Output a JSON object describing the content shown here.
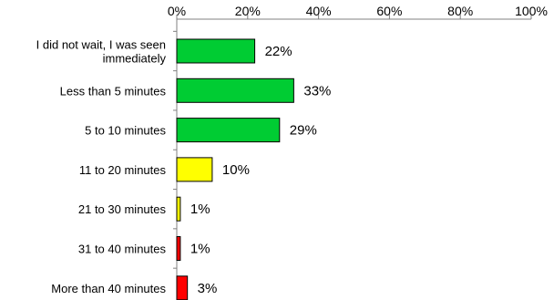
{
  "chart_data": {
    "type": "bar",
    "orientation": "horizontal",
    "title": "",
    "xlabel": "",
    "ylabel": "",
    "xlim": [
      0,
      100
    ],
    "x_ticks": [
      "0%",
      "20%",
      "40%",
      "60%",
      "80%",
      "100%"
    ],
    "x_tick_values": [
      0,
      20,
      40,
      60,
      80,
      100
    ],
    "x_axis_position": "top",
    "grid": false,
    "legend": "none",
    "categories": [
      [
        "I did not wait, I was seen",
        "immediately"
      ],
      [
        "Less than 5 minutes"
      ],
      [
        "5 to 10 minutes"
      ],
      [
        "11 to 20 minutes"
      ],
      [
        "21 to 30 minutes"
      ],
      [
        "31 to 40 minutes"
      ],
      [
        "More than 40 minutes"
      ]
    ],
    "values": [
      22,
      33,
      29,
      10,
      1,
      1,
      3
    ],
    "value_labels": [
      "22%",
      "33%",
      "29%",
      "10%",
      "1%",
      "1%",
      "3%"
    ],
    "bar_colors": [
      "#00cc33",
      "#00cc33",
      "#00cc33",
      "#ffff00",
      "#ffff00",
      "#ff0000",
      "#ff0000"
    ]
  }
}
